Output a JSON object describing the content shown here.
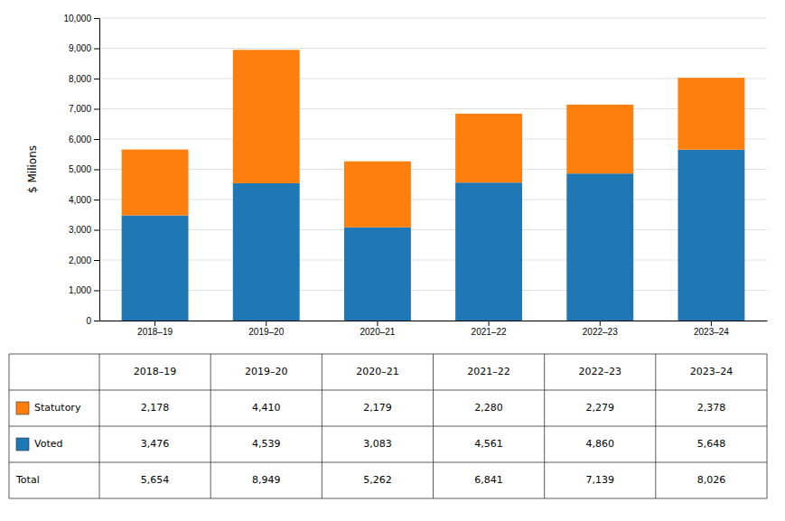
{
  "chart_data": {
    "type": "bar",
    "stacked": true,
    "categories": [
      "2018–19",
      "2019–20",
      "2020–21",
      "2021–22",
      "2022–23",
      "2023–24"
    ],
    "series": [
      {
        "name": "Voted",
        "values": [
          3476,
          4539,
          3083,
          4561,
          4860,
          5648
        ]
      },
      {
        "name": "Statutory",
        "values": [
          2178,
          4410,
          2179,
          2280,
          2279,
          2378
        ]
      }
    ],
    "totals": {
      "name": "Total",
      "values": [
        5654,
        8949,
        5262,
        6841,
        7139,
        8026
      ]
    },
    "ylabel": "$ Milions",
    "ylim": [
      0,
      10000
    ],
    "yticks": [
      0,
      {
        "value": 1000,
        "label": "1,000"
      },
      {
        "value": 2000,
        "label": "2,000"
      },
      {
        "value": 3000,
        "label": "3,000"
      },
      {
        "value": 4000,
        "label": "4,000"
      },
      {
        "value": 5000,
        "label": "5,000"
      },
      {
        "value": 6000,
        "label": "6,000"
      },
      {
        "value": 7000,
        "label": "7,000"
      },
      {
        "value": 8000,
        "label": "8,000"
      },
      {
        "value": 9000,
        "label": "9,000"
      },
      {
        "value": 10000,
        "label": "10,000"
      }
    ],
    "grid": true
  }
}
